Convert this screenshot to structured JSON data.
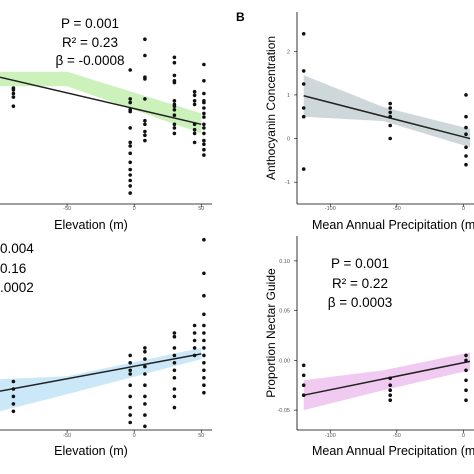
{
  "chart_data": [
    {
      "type": "scatter",
      "panel_label": "",
      "xlabel": "Elevation (m)",
      "ylabel": "",
      "xlim": [
        -100,
        58
      ],
      "ylim": [
        -2.5,
        2.8
      ],
      "xticks": [
        -50,
        0,
        50
      ],
      "xtick_labels": [
        "-50",
        "0",
        "50"
      ],
      "yticks": [],
      "ytick_labels": [],
      "stats": [
        "P = 0.001",
        "R² = 0.23",
        "β = -0.0008"
      ],
      "band_color": "#c8f0b4",
      "regression": {
        "x": [
          -100,
          50
        ],
        "y": [
          1.0,
          -0.3
        ]
      },
      "band": {
        "upper": [
          1.15,
          1.15,
          0.0
        ],
        "lower": [
          0.75,
          0.75,
          -0.55
        ],
        "x": [
          -100,
          -50,
          50
        ]
      },
      "points": {
        "x": [
          -90,
          -90,
          -90,
          -90,
          -90,
          -3,
          -3,
          -3,
          -3,
          -3,
          -3,
          -3,
          -3,
          -3,
          -3,
          -3,
          -3,
          -3,
          -3,
          -3,
          8,
          8,
          8,
          8,
          8,
          8,
          8,
          8,
          8,
          8,
          30,
          30,
          30,
          30,
          30,
          30,
          30,
          30,
          30,
          30,
          30,
          30,
          30,
          45,
          45,
          45,
          45,
          45,
          45,
          45,
          45,
          52,
          52,
          52,
          52,
          52,
          52,
          52,
          52,
          52,
          52,
          52,
          52,
          52,
          52,
          52
        ],
        "y": [
          0.65,
          0.7,
          0.55,
          0.45,
          0.2,
          1.2,
          0.1,
          0.3,
          0.4,
          0.05,
          -0.4,
          -0.8,
          -0.9,
          -1.1,
          -1.35,
          -1.55,
          -1.7,
          -1.85,
          -2.0,
          -2.2,
          2.05,
          1.6,
          1.0,
          0.95,
          0.4,
          -0.2,
          -0.3,
          -0.5,
          -0.6,
          -0.75,
          1.55,
          1.4,
          1.05,
          0.9,
          0.85,
          0.35,
          0.25,
          0.2,
          0.1,
          -0.05,
          -0.3,
          -0.4,
          -0.55,
          0.6,
          0.5,
          0.35,
          0.25,
          -0.3,
          -0.45,
          -0.55,
          -0.8,
          1.35,
          0.9,
          0.55,
          0.35,
          0.3,
          0.15,
          0.0,
          -0.1,
          -0.3,
          -0.4,
          -0.55,
          -0.75,
          -0.85,
          -1.0,
          -1.15
        ]
      }
    },
    {
      "type": "scatter",
      "panel_label": "B",
      "xlabel": "Mean Annual Precipitation (m",
      "ylabel": "Anthocyanin Concentration",
      "xlim": [
        -125,
        8
      ],
      "ylim": [
        -1.5,
        2.9
      ],
      "xticks": [
        -100,
        -50,
        0
      ],
      "xtick_labels": [
        "-100",
        "-50",
        "0"
      ],
      "yticks": [
        2,
        1,
        0,
        -1
      ],
      "ytick_labels": [
        "2",
        "1",
        "0",
        "-1"
      ],
      "stats": [],
      "band_color": "#c9d3d6",
      "regression": {
        "x": [
          -120,
          5
        ],
        "y": [
          0.98,
          0.0
        ]
      },
      "band": {
        "x": [
          -120,
          -60,
          5
        ],
        "upper": [
          1.45,
          0.72,
          0.22
        ],
        "lower": [
          0.5,
          0.4,
          -0.2
        ]
      },
      "points": {
        "x": [
          -120,
          -120,
          -120,
          -120,
          -120,
          -120,
          -55,
          -55,
          -55,
          -55,
          -55,
          -55,
          2,
          2,
          2,
          2,
          2,
          2,
          2
        ],
        "y": [
          2.4,
          1.55,
          1.25,
          0.7,
          0.5,
          -0.7,
          0.8,
          0.7,
          0.6,
          0.5,
          0.3,
          0.0,
          1.0,
          0.5,
          0.25,
          0.1,
          -0.2,
          -0.4,
          -0.6
        ]
      }
    },
    {
      "type": "scatter",
      "panel_label": "",
      "xlabel": "Elevation (m)",
      "ylabel": "",
      "xlim": [
        -100,
        58
      ],
      "ylim": [
        -0.9,
        1.7
      ],
      "xticks": [
        -50,
        0,
        50
      ],
      "xtick_labels": [
        "-50",
        "0",
        "50"
      ],
      "yticks": [],
      "ytick_labels": [],
      "stats": [
        "0.004",
        "0.16",
        ".0002"
      ],
      "band_color": "#c4e6f6",
      "regression": {
        "x": [
          -100,
          50
        ],
        "y": [
          -0.38,
          0.12
        ]
      },
      "band": {
        "x": [
          -100,
          -50,
          50
        ],
        "upper": [
          -0.22,
          -0.18,
          0.2
        ],
        "lower": [
          -0.65,
          -0.42,
          0.05
        ]
      },
      "points": {
        "x": [
          -90,
          -90,
          -90,
          -90,
          -90,
          -3,
          -3,
          -3,
          -3,
          -3,
          -3,
          -3,
          -3,
          -3,
          8,
          8,
          8,
          8,
          8,
          8,
          8,
          8,
          8,
          8,
          30,
          30,
          30,
          30,
          30,
          30,
          30,
          30,
          30,
          30,
          45,
          45,
          45,
          45,
          45,
          52,
          52,
          52,
          52,
          52,
          52,
          52,
          52,
          52,
          52,
          52,
          52,
          52,
          52
        ],
        "y": [
          -0.25,
          -0.35,
          -0.45,
          -0.55,
          -0.65,
          0.1,
          0.0,
          -0.1,
          -0.15,
          -0.3,
          -0.45,
          -0.6,
          -0.7,
          -0.8,
          0.2,
          0.15,
          0.05,
          -0.05,
          -0.15,
          -0.3,
          -0.45,
          -0.55,
          -0.7,
          -0.85,
          0.4,
          0.35,
          0.2,
          0.1,
          0.0,
          -0.1,
          -0.2,
          -0.35,
          -0.45,
          -0.6,
          0.5,
          0.4,
          0.3,
          0.2,
          0.1,
          1.65,
          1.2,
          0.9,
          0.65,
          0.5,
          0.4,
          0.3,
          0.2,
          0.1,
          0.0,
          -0.1,
          -0.2,
          -0.3,
          -0.4
        ]
      }
    },
    {
      "type": "scatter",
      "panel_label": "",
      "xlabel": "Mean Annual Precipitation (m",
      "ylabel": "Proportion Nectar Guide",
      "xlim": [
        -125,
        8
      ],
      "ylim": [
        -0.07,
        0.125
      ],
      "xticks": [
        -100,
        -50,
        0
      ],
      "xtick_labels": [
        "-100",
        "-50",
        "0"
      ],
      "yticks": [
        0.1,
        0.05,
        0.0,
        -0.05
      ],
      "ytick_labels": [
        "0.10",
        "0.05",
        "0.00",
        "-0.05"
      ],
      "stats": [
        "P = 0.001",
        "R² = 0.22",
        "β = 0.0003"
      ],
      "band_color": "#eec4ef",
      "regression": {
        "x": [
          -120,
          5
        ],
        "y": [
          -0.035,
          -0.001
        ]
      },
      "band": {
        "x": [
          -120,
          -60,
          5
        ],
        "upper": [
          -0.02,
          -0.01,
          0.008
        ],
        "lower": [
          -0.05,
          -0.03,
          -0.01
        ]
      },
      "points": {
        "x": [
          -120,
          -120,
          -120,
          -120,
          -55,
          -55,
          -55,
          -55,
          -55,
          2,
          2,
          2,
          2,
          2,
          2
        ],
        "y": [
          -0.005,
          -0.015,
          -0.025,
          -0.035,
          -0.018,
          -0.025,
          -0.03,
          -0.035,
          -0.04,
          0.005,
          0.0,
          -0.01,
          -0.02,
          -0.03,
          -0.04
        ]
      }
    }
  ]
}
